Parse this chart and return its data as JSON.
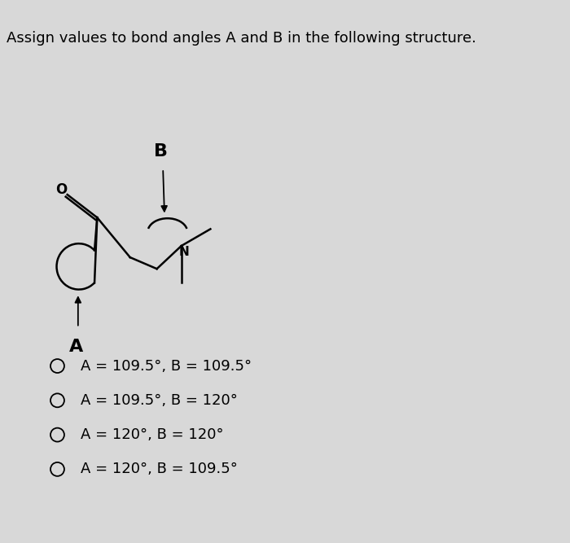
{
  "title": "Assign values to bond angles A and B in the following structure.",
  "background_color": "#d8d8d8",
  "options": [
    "A = 109.5°, B = 109.5°",
    "A = 109.5°, B = 120°",
    "A = 120°, B = 120°",
    "A = 120°, B = 109.5°"
  ],
  "radio_color": "#000000",
  "text_color": "#000000",
  "title_fontsize": 13,
  "option_fontsize": 13,
  "mol_color": "#000000",
  "mol_lw": 1.8
}
